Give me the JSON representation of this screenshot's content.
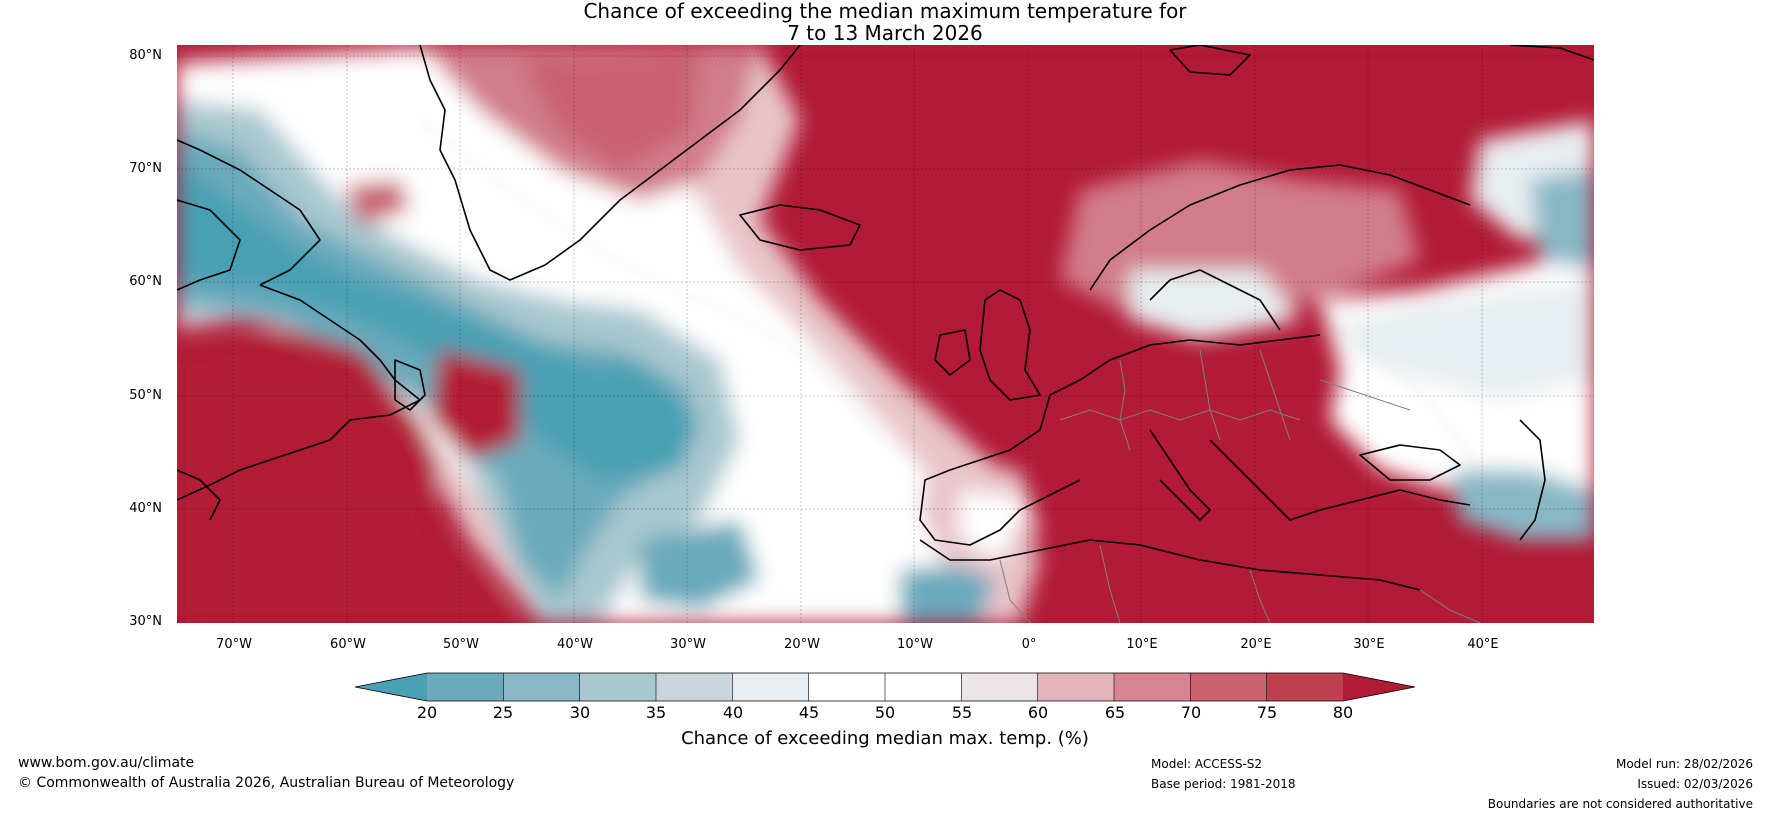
{
  "title": {
    "line1": "Chance of exceeding the median maximum temperature for",
    "line2": "7 to 13 March 2026"
  },
  "map": {
    "projection": "Plate Carree",
    "lon_range": [
      -75,
      50
    ],
    "lat_range": [
      30,
      81
    ],
    "lat_labels": [
      "80°N",
      "70°N",
      "60°N",
      "50°N",
      "40°N",
      "30°N"
    ],
    "lon_labels": [
      "70°W",
      "60°W",
      "50°W",
      "40°W",
      "30°W",
      "20°W",
      "10°W",
      "0°",
      "10°E",
      "20°E",
      "30°E",
      "40°E"
    ],
    "gridlines": true
  },
  "colorbar": {
    "ticks": [
      "20",
      "25",
      "30",
      "35",
      "40",
      "45",
      "50",
      "55",
      "60",
      "65",
      "70",
      "75",
      "80"
    ],
    "colors": [
      "#4aa0b4",
      "#6aaabb",
      "#88b8c6",
      "#a9c7d0",
      "#cbd6dc",
      "#e8eef1",
      "#ffffff",
      "#ffffff",
      "#ede4e7",
      "#e2b5bc",
      "#d78590",
      "#c9616f",
      "#bf414f",
      "#b21a35"
    ],
    "extend": "both",
    "label": "Chance of exceeding median max. temp. (%)"
  },
  "footer": {
    "url": "www.bom.gov.au/climate",
    "copyright": "© Commonwealth of Australia 2026, Australian Bureau of Meteorology",
    "model": "Model: ACCESS-S2",
    "base_period": "Base period: 1981-2018",
    "model_run": "Model run: 28/02/2026",
    "issued": "Issued: 02/03/2026",
    "boundaries": "Boundaries are not considered authoritative"
  },
  "colors": {
    "warm_dark": "#b21a35",
    "cool_dark": "#4aa0b4",
    "coastline": "#000000",
    "borders": "#808080"
  }
}
